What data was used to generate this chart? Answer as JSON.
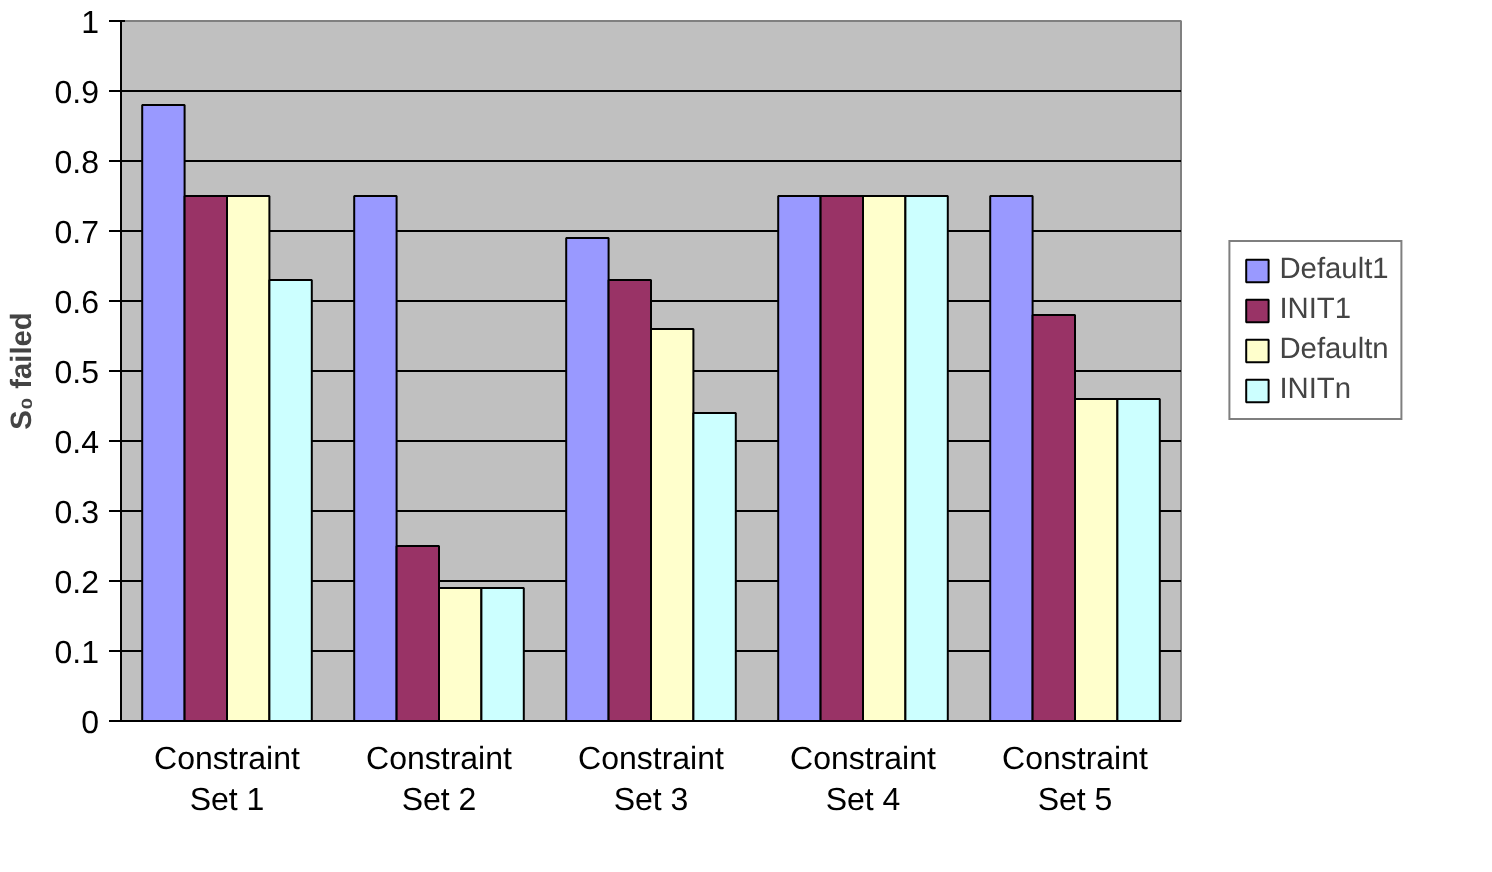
{
  "chart_data": {
    "type": "bar",
    "ylabel": "S₀ failed",
    "categories": [
      "Constraint Set 1",
      "Constraint Set 2",
      "Constraint Set 3",
      "Constraint Set 4",
      "Constraint Set 5"
    ],
    "series": [
      {
        "name": "Default1",
        "color": "#9999ff",
        "values": [
          0.88,
          0.75,
          0.69,
          0.75,
          0.75
        ]
      },
      {
        "name": "INIT1",
        "color": "#993366",
        "values": [
          0.75,
          0.25,
          0.63,
          0.75,
          0.58
        ]
      },
      {
        "name": "Defaultn",
        "color": "#ffffcc",
        "values": [
          0.75,
          0.19,
          0.56,
          0.75,
          0.46
        ]
      },
      {
        "name": "INITn",
        "color": "#ccffff",
        "values": [
          0.63,
          0.19,
          0.44,
          0.75,
          0.46
        ]
      }
    ],
    "ylim": [
      0,
      1
    ],
    "yticks": [
      0,
      0.1,
      0.2,
      0.3,
      0.4,
      0.5,
      0.6,
      0.7,
      0.8,
      0.9,
      1
    ],
    "grid": "y",
    "legend": "right"
  }
}
